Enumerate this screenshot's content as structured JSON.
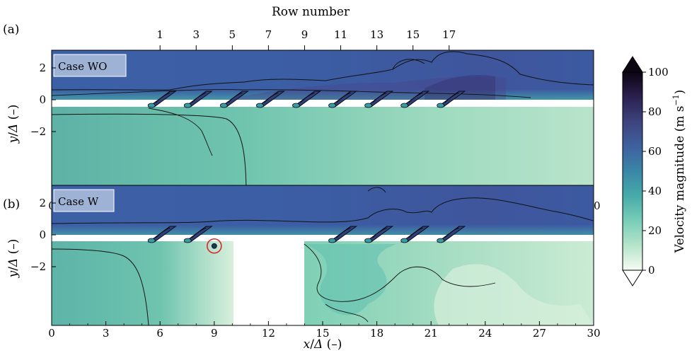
{
  "chart_data": [
    {
      "type": "heatmap",
      "panel_label": "(a)",
      "case_label": "Case WO",
      "top_axis": {
        "label": "Row number",
        "ticks": [
          1,
          3,
          5,
          7,
          9,
          11,
          13,
          15,
          17
        ],
        "tick_x_positions": [
          6.0,
          8.0,
          10.0,
          12.0,
          14.0,
          16.0,
          18.0,
          20.0,
          22.0
        ]
      },
      "xlabel": "",
      "ylabel": "y/Δ (–)",
      "xlim": [
        0,
        30
      ],
      "ylim": [
        -3.2,
        2.8
      ],
      "x_ticks": [
        0,
        3,
        6,
        9,
        12,
        15,
        18,
        21,
        24,
        27,
        30
      ],
      "y_ticks": [
        -2,
        0,
        2
      ],
      "inlet_rows_x": [
        6.0,
        8.0,
        10.0,
        12.0,
        14.0,
        16.0,
        18.0,
        20.0,
        22.0
      ]
    },
    {
      "type": "heatmap",
      "panel_label": "(b)",
      "case_label": "Case W",
      "xlabel": "x/Δ (–)",
      "ylabel": "y/Δ (–)",
      "xlim": [
        0,
        30
      ],
      "ylim": [
        -3.2,
        2.8
      ],
      "x_ticks": [
        0,
        3,
        6,
        9,
        12,
        15,
        18,
        21,
        24,
        27,
        30
      ],
      "y_ticks": [
        -2,
        0,
        2
      ],
      "inlet_rows_x": [
        6.0,
        8.0,
        16.0,
        18.0,
        20.0,
        22.0
      ],
      "gap_x_range": [
        10,
        14
      ],
      "marker": {
        "x": 9.0,
        "y": -0.7,
        "color": "#e0242a"
      }
    }
  ],
  "colorbar": {
    "label": "Velocity magnitude (m s",
    "label_superscript": "−1",
    "label_close": ")",
    "range": [
      0,
      100
    ],
    "ticks": [
      0,
      20,
      40,
      60,
      80,
      100
    ],
    "colormap": [
      "#f6fbf3",
      "#a9e0c6",
      "#61c1b1",
      "#3d9ea8",
      "#3a7aa5",
      "#3f5796",
      "#3a3b74",
      "#25193f",
      "#0c0512"
    ]
  }
}
